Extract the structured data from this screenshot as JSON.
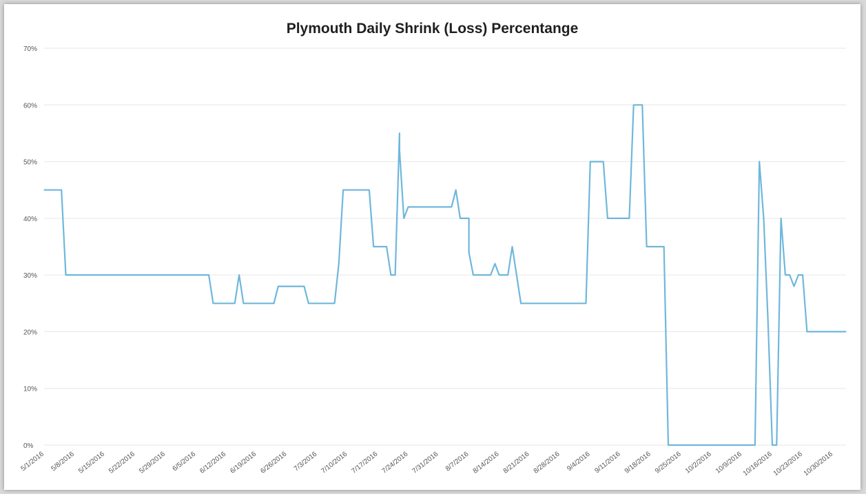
{
  "chart_data": {
    "type": "line",
    "title": "Plymouth Daily Shrink (Loss) Percentange",
    "xlabel": "",
    "ylabel": "",
    "ylim": [
      0,
      70
    ],
    "yticks": [
      "0%",
      "10%",
      "20%",
      "30%",
      "40%",
      "50%",
      "60%",
      "70%"
    ],
    "xlim": [
      "5/1/2016",
      "11/2/2016"
    ],
    "xticks": [
      "5/1/2016",
      "5/8/2016",
      "5/15/2016",
      "5/22/2016",
      "5/29/2016",
      "6/5/2016",
      "6/12/2016",
      "6/19/2016",
      "6/26/2016",
      "7/3/2016",
      "7/10/2016",
      "7/17/2016",
      "7/24/2016",
      "7/31/2016",
      "8/7/2016",
      "8/14/2016",
      "8/21/2016",
      "8/28/2016",
      "9/4/2016",
      "9/11/2016",
      "9/18/2016",
      "9/25/2016",
      "10/2/2016",
      "10/9/2016",
      "10/16/2016",
      "10/23/2016",
      "10/30/2016"
    ],
    "grid": true,
    "color": "#6fb7dc",
    "series": [
      {
        "x": [
          "5/1/2016",
          "5/5/2016",
          "5/6/2016",
          "6/8/2016",
          "6/9/2016",
          "6/14/2016",
          "6/15/2016",
          "6/16/2016",
          "6/23/2016",
          "6/24/2016",
          "6/30/2016",
          "7/1/2016",
          "7/7/2016",
          "7/8/2016",
          "7/9/2016",
          "7/15/2016",
          "7/16/2016",
          "7/19/2016",
          "7/20/2016",
          "7/21/2016",
          "7/22/2016",
          "7/22/2016",
          "7/23/2016",
          "7/24/2016",
          "7/25/2016",
          "8/3/2016",
          "8/4/2016",
          "8/5/2016",
          "8/7/2016",
          "8/7/2016",
          "8/8/2016",
          "8/12/2016",
          "8/13/2016",
          "8/14/2016",
          "8/16/2016",
          "8/17/2016",
          "8/18/2016",
          "8/19/2016",
          "9/3/2016",
          "9/4/2016",
          "9/7/2016",
          "9/8/2016",
          "9/13/2016",
          "9/14/2016",
          "9/16/2016",
          "9/17/2016",
          "9/21/2016",
          "9/22/2016",
          "10/12/2016",
          "10/13/2016",
          "10/14/2016",
          "10/15/2016",
          "10/16/2016",
          "10/17/2016",
          "10/18/2016",
          "10/19/2016",
          "10/20/2016",
          "10/21/2016",
          "10/22/2016",
          "10/23/2016",
          "10/24/2016",
          "11/2/2016"
        ],
        "y": [
          45,
          45,
          30,
          30,
          25,
          25,
          30,
          25,
          25,
          28,
          28,
          25,
          25,
          32,
          45,
          45,
          35,
          35,
          30,
          30,
          55,
          52,
          40,
          42,
          42,
          42,
          45,
          40,
          40,
          34,
          30,
          30,
          32,
          30,
          30,
          35,
          30,
          25,
          25,
          50,
          50,
          40,
          40,
          60,
          60,
          35,
          35,
          0,
          0,
          50,
          40,
          22,
          0,
          0,
          40,
          30,
          30,
          28,
          30,
          30,
          20,
          20
        ]
      }
    ]
  }
}
